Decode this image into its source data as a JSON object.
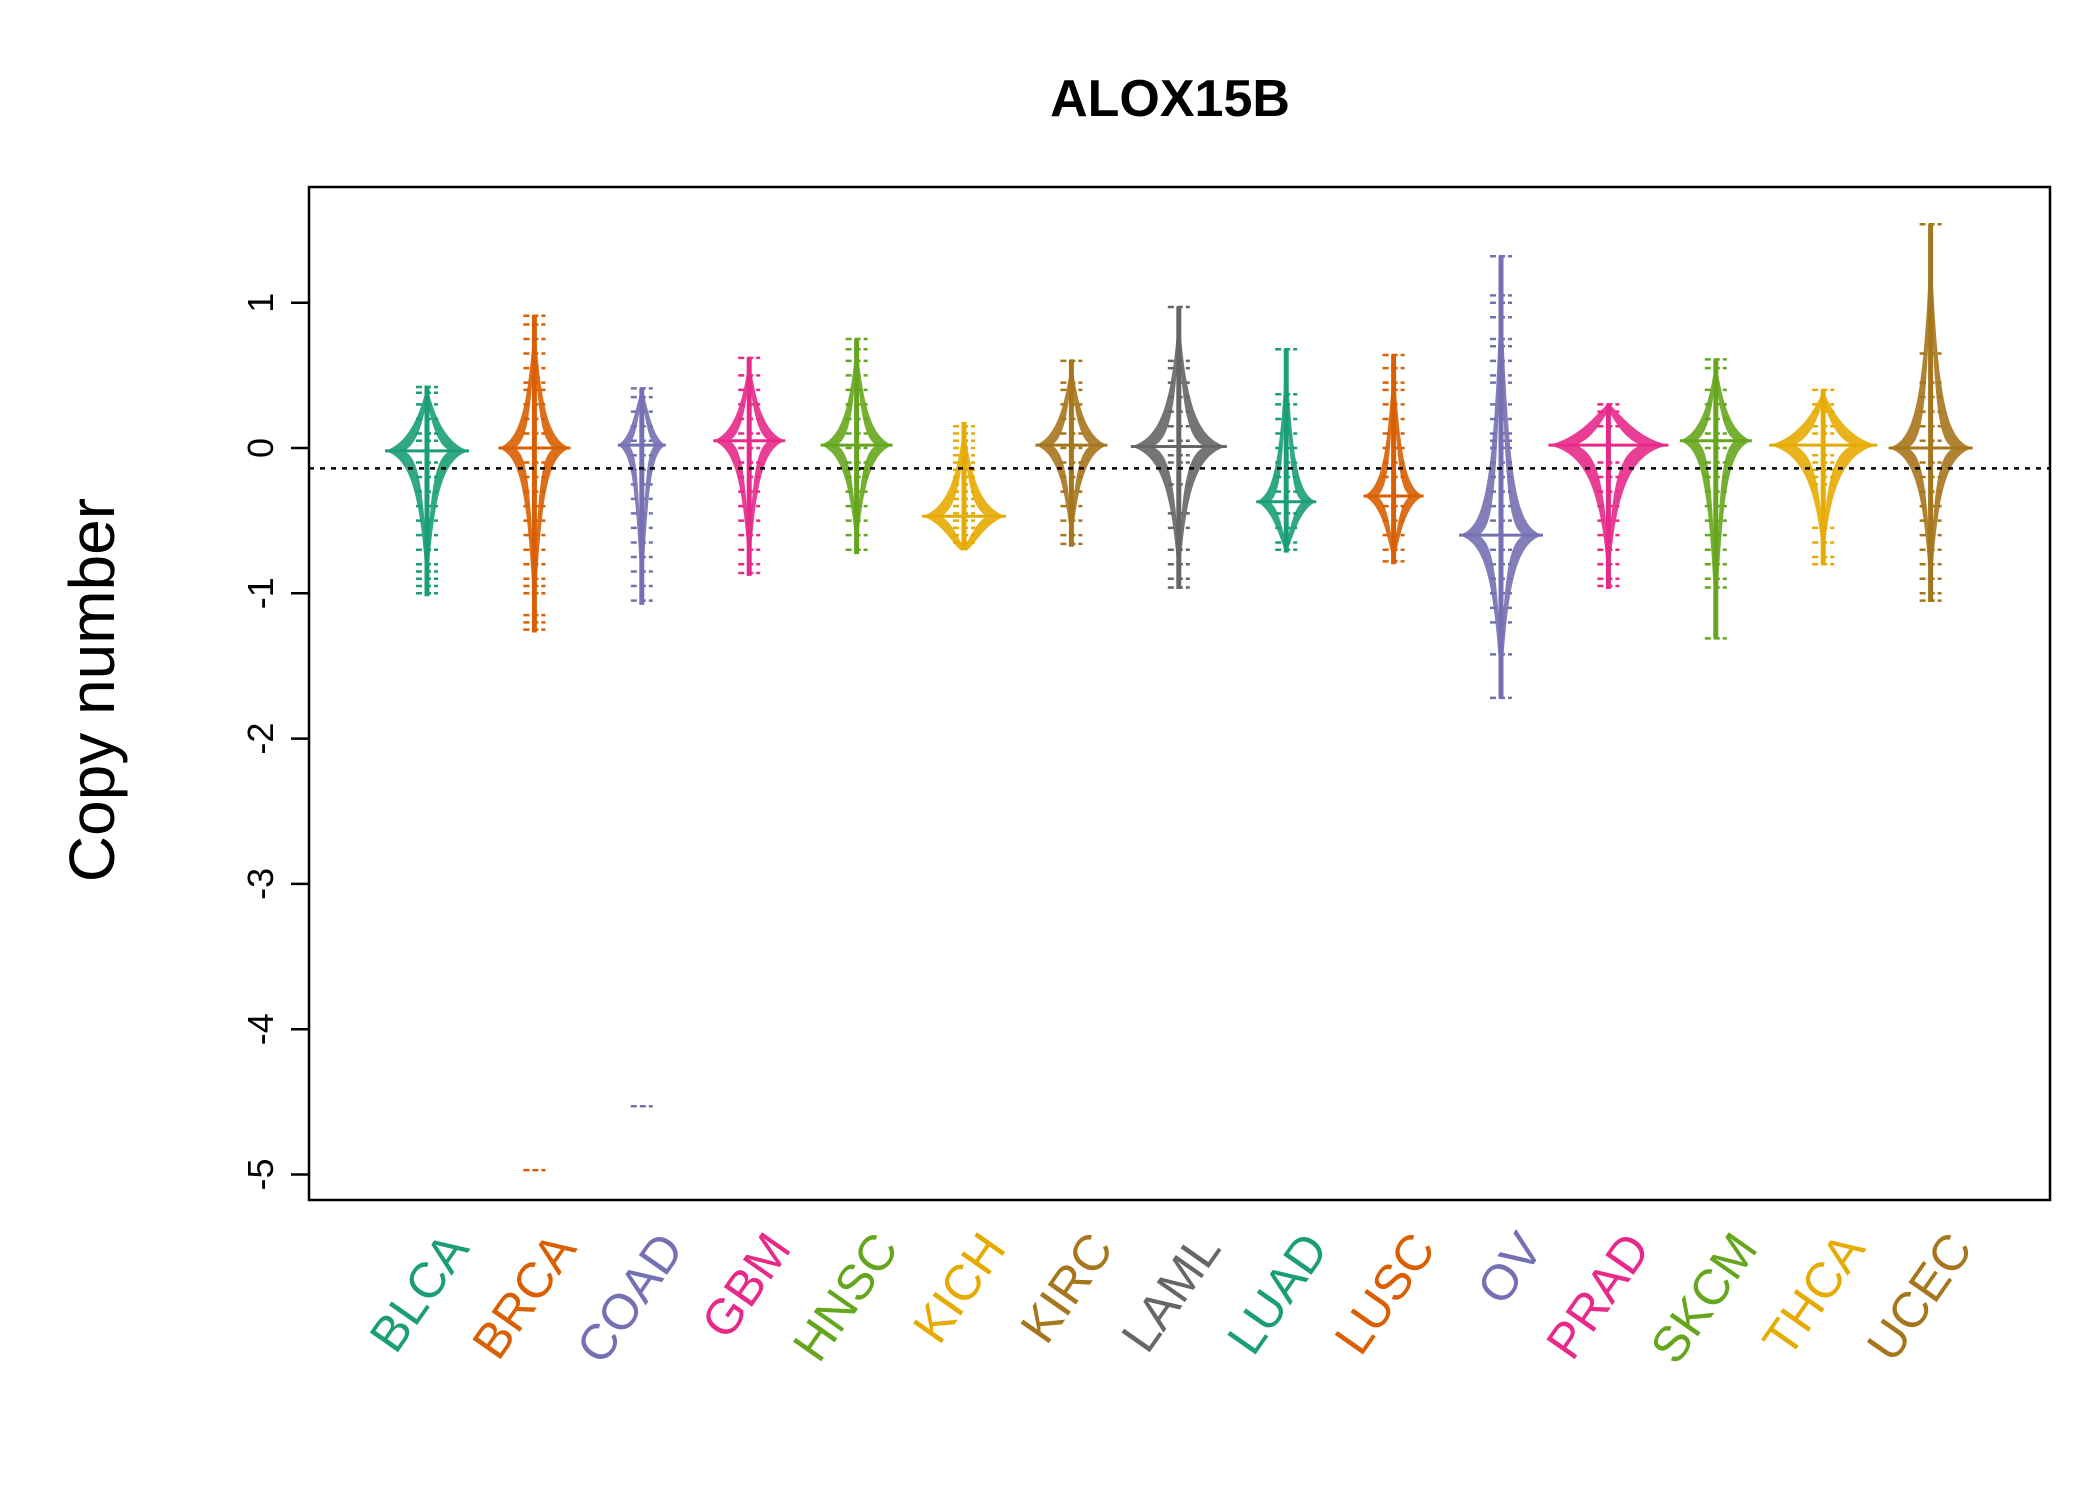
{
  "chart_data": {
    "type": "beanplot",
    "title": "ALOX15B",
    "xlabel": "",
    "ylabel": "Copy number",
    "ylim": [
      -5.2,
      1.8
    ],
    "yticks": [
      1,
      0,
      -1,
      -2,
      -3,
      -4,
      -5
    ],
    "yticklabels": [
      "1",
      "0",
      "-1",
      "-2",
      "-3",
      "-4",
      "-5"
    ],
    "reference_line": -0.14,
    "grid": false,
    "legend": "none",
    "categories": [
      "BLCA",
      "BRCA",
      "COAD",
      "GBM",
      "HNSC",
      "KICH",
      "KIRC",
      "LAML",
      "LUAD",
      "LUSC",
      "OV",
      "PRAD",
      "SKCM",
      "THCA",
      "UCEC"
    ],
    "series": [
      {
        "color": "#1b9e77",
        "min": -1.02,
        "max": 0.43,
        "mode": -0.02,
        "width": 0.35,
        "points": [
          0.42,
          0.38,
          0.3,
          0.2,
          0.1,
          0.05,
          -0.02,
          -0.1,
          -0.2,
          -0.3,
          -0.4,
          -0.5,
          -0.6,
          -0.7,
          -0.8,
          -0.85,
          -0.9,
          -0.95,
          -1.0
        ]
      },
      {
        "color": "#d95f02",
        "min": -1.27,
        "max": 0.91,
        "mode": 0.0,
        "width": 0.3,
        "points": [
          0.91,
          0.85,
          0.75,
          0.65,
          0.55,
          0.45,
          0.4,
          0.3,
          0.2,
          0.1,
          0.0,
          -0.1,
          -0.2,
          -0.3,
          -0.4,
          -0.5,
          -0.6,
          -0.7,
          -0.8,
          -0.9,
          -0.95,
          -1.0,
          -1.15,
          -1.2,
          -1.25,
          -4.97
        ]
      },
      {
        "color": "#7570b3",
        "min": -1.08,
        "max": 0.41,
        "mode": 0.02,
        "width": 0.2,
        "points": [
          0.41,
          0.35,
          0.25,
          0.15,
          0.05,
          -0.05,
          -0.15,
          -0.25,
          -0.35,
          -0.45,
          -0.55,
          -0.65,
          -0.75,
          -0.85,
          -0.95,
          -1.05,
          -4.53
        ]
      },
      {
        "color": "#e7298a",
        "min": -0.88,
        "max": 0.62,
        "mode": 0.05,
        "width": 0.3,
        "points": [
          0.62,
          0.5,
          0.4,
          0.3,
          0.2,
          0.1,
          0.0,
          -0.1,
          -0.2,
          -0.3,
          -0.4,
          -0.5,
          -0.6,
          -0.7,
          -0.8,
          -0.86
        ]
      },
      {
        "color": "#66a61e",
        "min": -0.73,
        "max": 0.75,
        "mode": 0.02,
        "width": 0.3,
        "points": [
          0.75,
          0.68,
          0.6,
          0.5,
          0.4,
          0.3,
          0.2,
          0.1,
          0.0,
          -0.1,
          -0.15,
          -0.2,
          -0.3,
          -0.4,
          -0.5,
          -0.6,
          -0.7
        ]
      },
      {
        "color": "#e6ab02",
        "min": -0.7,
        "max": 0.18,
        "mode": -0.47,
        "width": 0.35,
        "points": [
          0.15,
          0.1,
          0.05,
          0.0,
          -0.05,
          -0.1,
          -0.15,
          -0.2,
          -0.25,
          -0.3,
          -0.35,
          -0.4,
          -0.45,
          -0.5,
          -0.55,
          -0.6,
          -0.65
        ]
      },
      {
        "color": "#a6761d",
        "min": -0.68,
        "max": 0.61,
        "mode": 0.02,
        "width": 0.3,
        "points": [
          0.6,
          0.45,
          0.4,
          0.3,
          0.2,
          0.1,
          0.0,
          -0.1,
          -0.2,
          -0.3,
          -0.4,
          -0.5,
          -0.6,
          -0.66
        ]
      },
      {
        "color": "#666666",
        "min": -0.97,
        "max": 0.97,
        "mode": 0.01,
        "width": 0.4,
        "points": [
          0.97,
          0.6,
          0.55,
          0.45,
          0.35,
          0.25,
          0.15,
          0.05,
          -0.05,
          -0.1,
          -0.25,
          -0.45,
          -0.55,
          -0.7,
          -0.8,
          -0.9,
          -0.96
        ]
      },
      {
        "color": "#1b9e77",
        "min": -0.72,
        "max": 0.68,
        "mode": -0.37,
        "width": 0.25,
        "points": [
          0.68,
          0.37,
          0.3,
          0.2,
          0.1,
          0.0,
          -0.1,
          -0.2,
          -0.3,
          -0.37,
          -0.45,
          -0.55,
          -0.65,
          -0.7
        ]
      },
      {
        "color": "#d95f02",
        "min": -0.8,
        "max": 0.64,
        "mode": -0.33,
        "width": 0.25,
        "points": [
          0.64,
          0.55,
          0.45,
          0.4,
          0.3,
          0.2,
          0.1,
          0.0,
          -0.1,
          -0.2,
          -0.33,
          -0.4,
          -0.5,
          -0.6,
          -0.7,
          -0.78
        ]
      },
      {
        "color": "#7570b3",
        "min": -1.72,
        "max": 1.32,
        "mode": -0.6,
        "width": 0.35,
        "points": [
          1.32,
          1.05,
          1.0,
          0.9,
          0.75,
          0.7,
          0.6,
          0.5,
          0.45,
          0.3,
          0.2,
          0.1,
          0.05,
          0.0,
          -0.1,
          -0.2,
          -0.3,
          -0.4,
          -0.5,
          -0.6,
          -0.7,
          -0.8,
          -0.9,
          -1.0,
          -1.1,
          -1.2,
          -1.42,
          -1.72
        ]
      },
      {
        "color": "#e7298a",
        "min": -0.97,
        "max": 0.3,
        "mode": 0.02,
        "width": 0.5,
        "points": [
          0.3,
          0.25,
          0.15,
          0.02,
          -0.1,
          -0.2,
          -0.3,
          -0.4,
          -0.5,
          -0.6,
          -0.7,
          -0.8,
          -0.9,
          -0.95
        ]
      },
      {
        "color": "#66a61e",
        "min": -1.31,
        "max": 0.61,
        "mode": 0.05,
        "width": 0.3,
        "points": [
          0.61,
          0.55,
          0.4,
          0.3,
          0.2,
          0.1,
          0.0,
          -0.1,
          -0.2,
          -0.3,
          -0.4,
          -0.5,
          -0.6,
          -0.7,
          -0.8,
          -0.9,
          -0.96,
          -1.31
        ]
      },
      {
        "color": "#e6ab02",
        "min": -0.8,
        "max": 0.4,
        "mode": 0.02,
        "width": 0.45,
        "points": [
          0.4,
          0.3,
          0.25,
          0.15,
          0.1,
          0.02,
          -0.05,
          -0.1,
          -0.15,
          -0.2,
          -0.25,
          -0.55,
          -0.65,
          -0.75,
          -0.8
        ]
      },
      {
        "color": "#a6761d",
        "min": -1.06,
        "max": 1.54,
        "mode": 0.0,
        "width": 0.35,
        "points": [
          1.54,
          0.65,
          0.45,
          0.35,
          0.25,
          0.15,
          0.05,
          0.0,
          -0.1,
          -0.2,
          -0.3,
          -0.4,
          -0.5,
          -0.6,
          -0.7,
          -0.8,
          -0.9,
          -1.0,
          -1.05
        ]
      }
    ]
  }
}
